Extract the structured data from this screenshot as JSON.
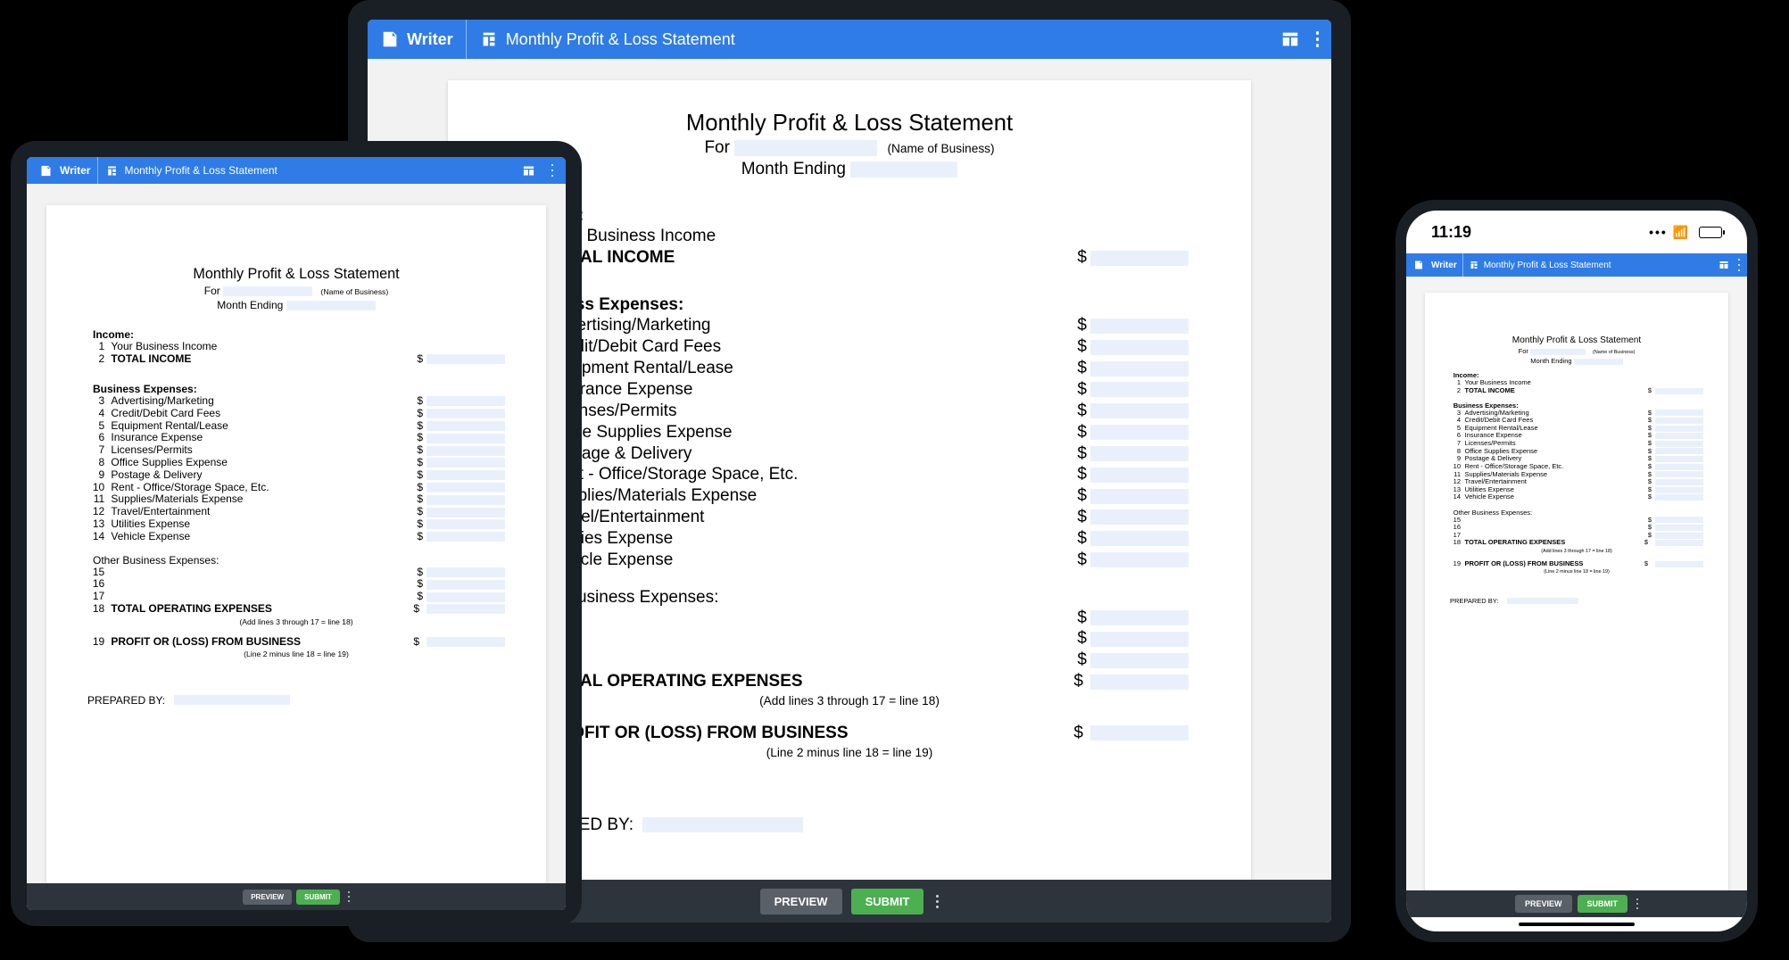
{
  "colors": {
    "header_bg": "#2f7ce6",
    "toolbar_bg": "#2e343b",
    "field_bg": "#eaf0fb",
    "canvas_bg": "#f2f2f2",
    "submit_bg": "#4caf50",
    "preview_bg": "#5a6068",
    "page_bg": "#ffffff"
  },
  "phone": {
    "time": "11:19"
  },
  "header": {
    "brand": "Writer",
    "doc_title": "Monthly Profit & Loss Statement"
  },
  "doc": {
    "title": "Monthly Profit & Loss Statement",
    "for_label": "For",
    "for_hint": "(Name of Business)",
    "month_label": "Month Ending",
    "income_heading": "Income:",
    "income_rows": [
      {
        "n": "1",
        "label": "Your Business Income",
        "bold": false,
        "amount": false
      },
      {
        "n": "2",
        "label": "TOTAL INCOME",
        "bold": true,
        "amount": true
      }
    ],
    "expenses_heading": "Business Expenses:",
    "expense_rows": [
      {
        "n": "3",
        "label": "Advertising/Marketing"
      },
      {
        "n": "4",
        "label": "Credit/Debit Card Fees"
      },
      {
        "n": "5",
        "label": "Equipment Rental/Lease"
      },
      {
        "n": "6",
        "label": "Insurance Expense"
      },
      {
        "n": "7",
        "label": "Licenses/Permits"
      },
      {
        "n": "8",
        "label": "Office Supplies Expense"
      },
      {
        "n": "9",
        "label": "Postage & Delivery"
      },
      {
        "n": "10",
        "label": "Rent - Office/Storage Space, Etc."
      },
      {
        "n": "11",
        "label": "Supplies/Materials Expense"
      },
      {
        "n": "12",
        "label": "Travel/Entertainment"
      },
      {
        "n": "13",
        "label": "Utilities Expense"
      },
      {
        "n": "14",
        "label": "Vehicle Expense"
      }
    ],
    "other_heading": "Other Business Expenses:",
    "other_rows": [
      {
        "n": "15"
      },
      {
        "n": "16"
      },
      {
        "n": "17"
      }
    ],
    "totals": [
      {
        "n": "18",
        "label": "TOTAL OPERATING EXPENSES",
        "note": "(Add lines 3 through 17 = line 18)"
      },
      {
        "n": "19",
        "label": "PROFIT OR (LOSS) FROM BUSINESS",
        "note": "(Line 2 minus line 18 = line 19)"
      }
    ],
    "prepared_by": "PREPARED BY:"
  },
  "toolbar": {
    "preview": "PREVIEW",
    "submit": "SUBMIT"
  }
}
